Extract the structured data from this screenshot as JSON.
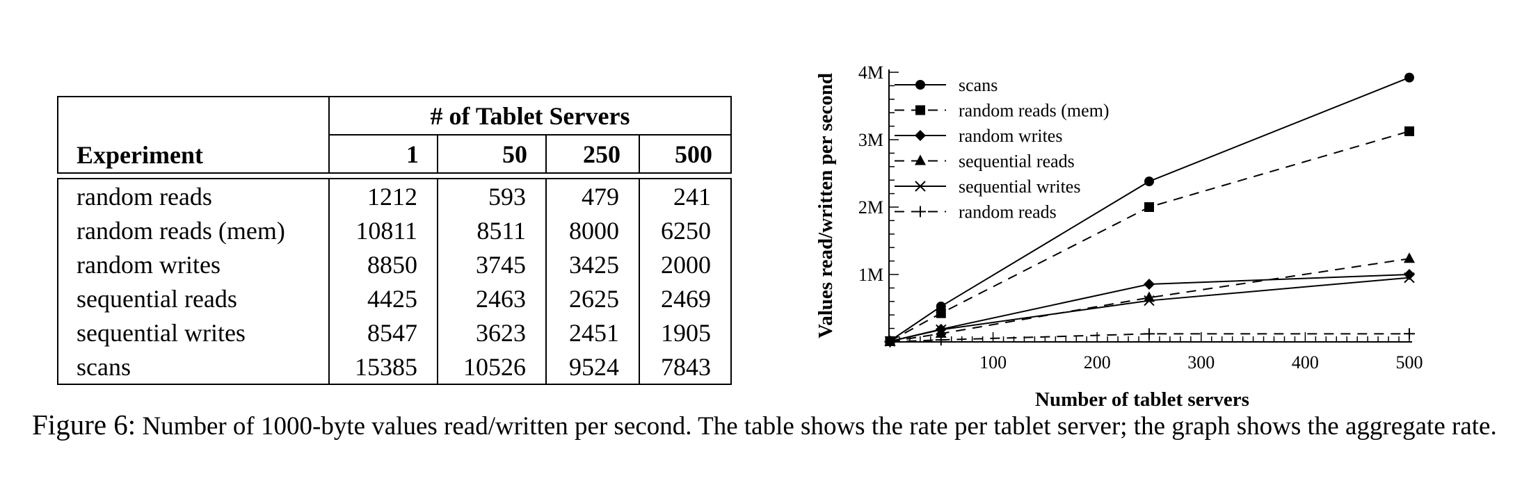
{
  "table": {
    "col_header_experiment": "Experiment",
    "col_group_header": "# of Tablet Servers",
    "columns": [
      "1",
      "50",
      "250",
      "500"
    ],
    "rows": [
      {
        "name": "random reads",
        "values": [
          "1212",
          "593",
          "479",
          "241"
        ]
      },
      {
        "name": "random reads (mem)",
        "values": [
          "10811",
          "8511",
          "8000",
          "6250"
        ]
      },
      {
        "name": "random writes",
        "values": [
          "8850",
          "3745",
          "3425",
          "2000"
        ]
      },
      {
        "name": "sequential reads",
        "values": [
          "4425",
          "2463",
          "2625",
          "2469"
        ]
      },
      {
        "name": "sequential writes",
        "values": [
          "8547",
          "3623",
          "2451",
          "1905"
        ]
      },
      {
        "name": "scans",
        "values": [
          "15385",
          "10526",
          "9524",
          "7843"
        ]
      }
    ]
  },
  "chart_data": {
    "type": "line",
    "xlabel": "Number of tablet servers",
    "ylabel": "Values read/written per second",
    "xlim": [
      0,
      500
    ],
    "ylim": [
      0,
      4000000
    ],
    "xticks": [
      100,
      200,
      300,
      400,
      500
    ],
    "xtick_labels": [
      "100",
      "200",
      "300",
      "400",
      "500"
    ],
    "yticks": [
      1000000,
      2000000,
      3000000,
      4000000
    ],
    "ytick_labels": [
      "1M",
      "2M",
      "3M",
      "4M"
    ],
    "x": [
      1,
      50,
      250,
      500
    ],
    "legend_position": "top-left",
    "grid": false,
    "series": [
      {
        "name": "scans",
        "marker": "circle",
        "dash": "solid",
        "values": [
          15385,
          526300,
          2381000,
          3921500
        ]
      },
      {
        "name": "random reads (mem)",
        "marker": "square",
        "dash": "dashed",
        "values": [
          10811,
          425550,
          2000000,
          3125000
        ]
      },
      {
        "name": "random writes",
        "marker": "diamond",
        "dash": "solid",
        "values": [
          8850,
          187250,
          856250,
          1000000
        ]
      },
      {
        "name": "sequential reads",
        "marker": "triangle",
        "dash": "dashed",
        "values": [
          4425,
          123150,
          656250,
          1234500
        ]
      },
      {
        "name": "sequential writes",
        "marker": "x",
        "dash": "solid",
        "values": [
          8547,
          181150,
          612750,
          952500
        ]
      },
      {
        "name": "random reads",
        "marker": "plus",
        "dash": "dashed",
        "values": [
          1212,
          29650,
          119750,
          120500
        ]
      }
    ]
  },
  "caption": {
    "label": "Figure 6:",
    "text": "Number of 1000-byte values read/written per second. The table shows the rate per tablet server; the graph shows the aggregate rate."
  }
}
